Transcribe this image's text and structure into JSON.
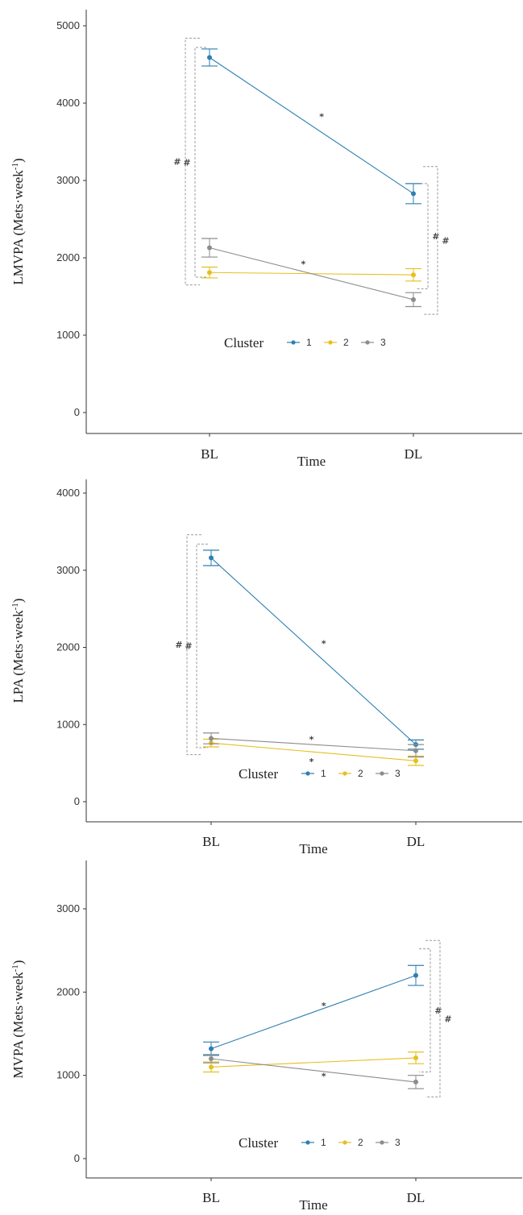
{
  "chart_data": [
    {
      "type": "line",
      "categories": [
        "BL",
        "DL"
      ],
      "xlabel": "Time",
      "ylabel": "LMVPA (Mets·week",
      "ylabel_sup": "-1",
      "ylabel_end": ")",
      "ylim": [
        0,
        5000
      ],
      "yticks": [
        0,
        1000,
        2000,
        3000,
        4000,
        5000
      ],
      "legend": {
        "title": "Cluster",
        "placement": "center"
      },
      "colors": [
        "#2f7fb2",
        "#e6bf1e",
        "#8c8c8c"
      ],
      "series": [
        {
          "name": "1",
          "values": [
            4590,
            2830
          ],
          "errors": [
            110,
            130
          ]
        },
        {
          "name": "2",
          "values": [
            1810,
            1780
          ],
          "errors": [
            70,
            80
          ]
        },
        {
          "name": "3",
          "values": [
            2130,
            1460
          ],
          "errors": [
            120,
            90
          ]
        }
      ],
      "annotations": [
        {
          "text": "*",
          "x": 1.55,
          "y": 3830
        },
        {
          "text": "*",
          "x": 1.46,
          "y": 1920
        }
      ],
      "brackets": [
        {
          "text": "#",
          "category": "BL",
          "side": "left",
          "y_range": [
            1650,
            4840
          ],
          "level": 2
        },
        {
          "text": "#",
          "category": "BL",
          "side": "left",
          "y_range": [
            1750,
            4720
          ],
          "level": 1
        },
        {
          "text": "#",
          "category": "DL",
          "side": "right",
          "y_range": [
            1600,
            2960
          ],
          "level": 1
        },
        {
          "text": "#",
          "category": "DL",
          "side": "right",
          "y_range": [
            1270,
            3180
          ],
          "level": 2
        }
      ]
    },
    {
      "type": "line",
      "categories": [
        "BL",
        "DL"
      ],
      "xlabel": "Time",
      "ylabel": "LPA (Mets·week",
      "ylabel_sup": "-1",
      "ylabel_end": ")",
      "ylim": [
        0,
        4000
      ],
      "yticks": [
        0,
        1000,
        2000,
        3000,
        4000
      ],
      "legend": {
        "title": "Cluster",
        "placement": "bottom-center"
      },
      "colors": [
        "#2f7fb2",
        "#e6bf1e",
        "#8c8c8c"
      ],
      "series": [
        {
          "name": "1",
          "values": [
            3160,
            740
          ],
          "errors": [
            100,
            60
          ]
        },
        {
          "name": "2",
          "values": [
            760,
            530
          ],
          "errors": [
            50,
            60
          ]
        },
        {
          "name": "3",
          "values": [
            820,
            660
          ],
          "errors": [
            70,
            80
          ]
        }
      ],
      "annotations": [
        {
          "text": "*",
          "x": 1.55,
          "y": 2050
        },
        {
          "text": "*",
          "x": 1.49,
          "y": 810
        },
        {
          "text": "*",
          "x": 1.49,
          "y": 520
        }
      ],
      "brackets": [
        {
          "text": "#",
          "category": "BL",
          "side": "left",
          "y_range": [
            610,
            3460
          ],
          "level": 2
        },
        {
          "text": "#",
          "category": "BL",
          "side": "left",
          "y_range": [
            700,
            3340
          ],
          "level": 1
        }
      ]
    },
    {
      "type": "line",
      "categories": [
        "BL",
        "DL"
      ],
      "xlabel": "Time",
      "ylabel": "MVPA (Mets·week",
      "ylabel_sup": "-1",
      "ylabel_end": ")",
      "ylim": [
        0,
        3800
      ],
      "yticks": [
        0,
        1000,
        2000,
        3000
      ],
      "legend": {
        "title": "Cluster",
        "placement": "bottom-center"
      },
      "colors": [
        "#2f7fb2",
        "#e6bf1e",
        "#8c8c8c"
      ],
      "series": [
        {
          "name": "1",
          "values": [
            1320,
            2200
          ],
          "errors": [
            80,
            120
          ]
        },
        {
          "name": "2",
          "values": [
            1100,
            1210
          ],
          "errors": [
            60,
            70
          ]
        },
        {
          "name": "3",
          "values": [
            1200,
            920
          ],
          "errors": [
            50,
            80
          ]
        }
      ],
      "annotations": [
        {
          "text": "*",
          "x": 1.55,
          "y": 1840
        },
        {
          "text": "*",
          "x": 1.55,
          "y": 990
        }
      ],
      "brackets": [
        {
          "text": "#",
          "category": "DL",
          "side": "right",
          "y_range": [
            1040,
            2520
          ],
          "level": 1
        },
        {
          "text": "#",
          "category": "DL",
          "side": "right",
          "y_range": [
            740,
            2620
          ],
          "level": 2
        }
      ]
    }
  ]
}
